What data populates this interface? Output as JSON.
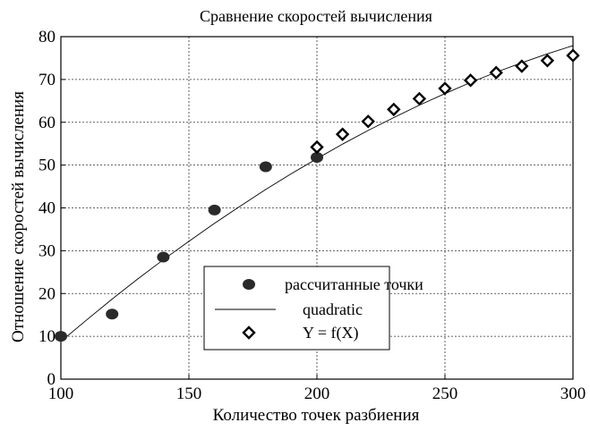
{
  "chart_data": {
    "type": "scatter",
    "title": "Сравнение скоростей вычисления",
    "xlabel": "Количество точек разбиения",
    "ylabel": "Отношение скоростей вычисления",
    "xlim": [
      100,
      300
    ],
    "ylim": [
      0,
      80
    ],
    "xticks": [
      100,
      150,
      200,
      250,
      300
    ],
    "yticks": [
      0,
      10,
      20,
      30,
      40,
      50,
      60,
      70,
      80
    ],
    "grid": true,
    "legend_position": "bottom-center",
    "series": [
      {
        "name": "рассчитанные точки",
        "marker": "filled-circle",
        "color": "#2a2a2a",
        "x": [
          100,
          120,
          140,
          160,
          180,
          200
        ],
        "y": [
          10,
          15.2,
          28.5,
          39.5,
          49.6,
          51.8
        ]
      },
      {
        "name": "quadratic",
        "marker": "line",
        "color": "#000000",
        "equation": "",
        "x": [
          100,
          110,
          120,
          130,
          140,
          150,
          160,
          170,
          180,
          190,
          200,
          210,
          220,
          230,
          240,
          250,
          260,
          270,
          280,
          290,
          300
        ],
        "y": [
          8.8,
          13.8,
          18.7,
          23.4,
          27.9,
          32.2,
          36.4,
          40.4,
          44.3,
          48.0,
          51.5,
          54.9,
          58.1,
          61.1,
          64.0,
          66.7,
          69.3,
          71.7,
          73.9,
          76.0,
          77.9
        ]
      },
      {
        "name": "Y = f(X)",
        "marker": "diamond",
        "color": "#000000",
        "x": [
          200,
          210,
          220,
          230,
          240,
          250,
          260,
          270,
          280,
          290,
          300
        ],
        "y": [
          54.2,
          57.2,
          60.2,
          63.0,
          65.5,
          67.9,
          69.8,
          71.6,
          73.1,
          74.4,
          75.6
        ]
      }
    ]
  },
  "colors": {
    "axis": "#000000",
    "grid": "#333333",
    "background": "#ffffff"
  }
}
